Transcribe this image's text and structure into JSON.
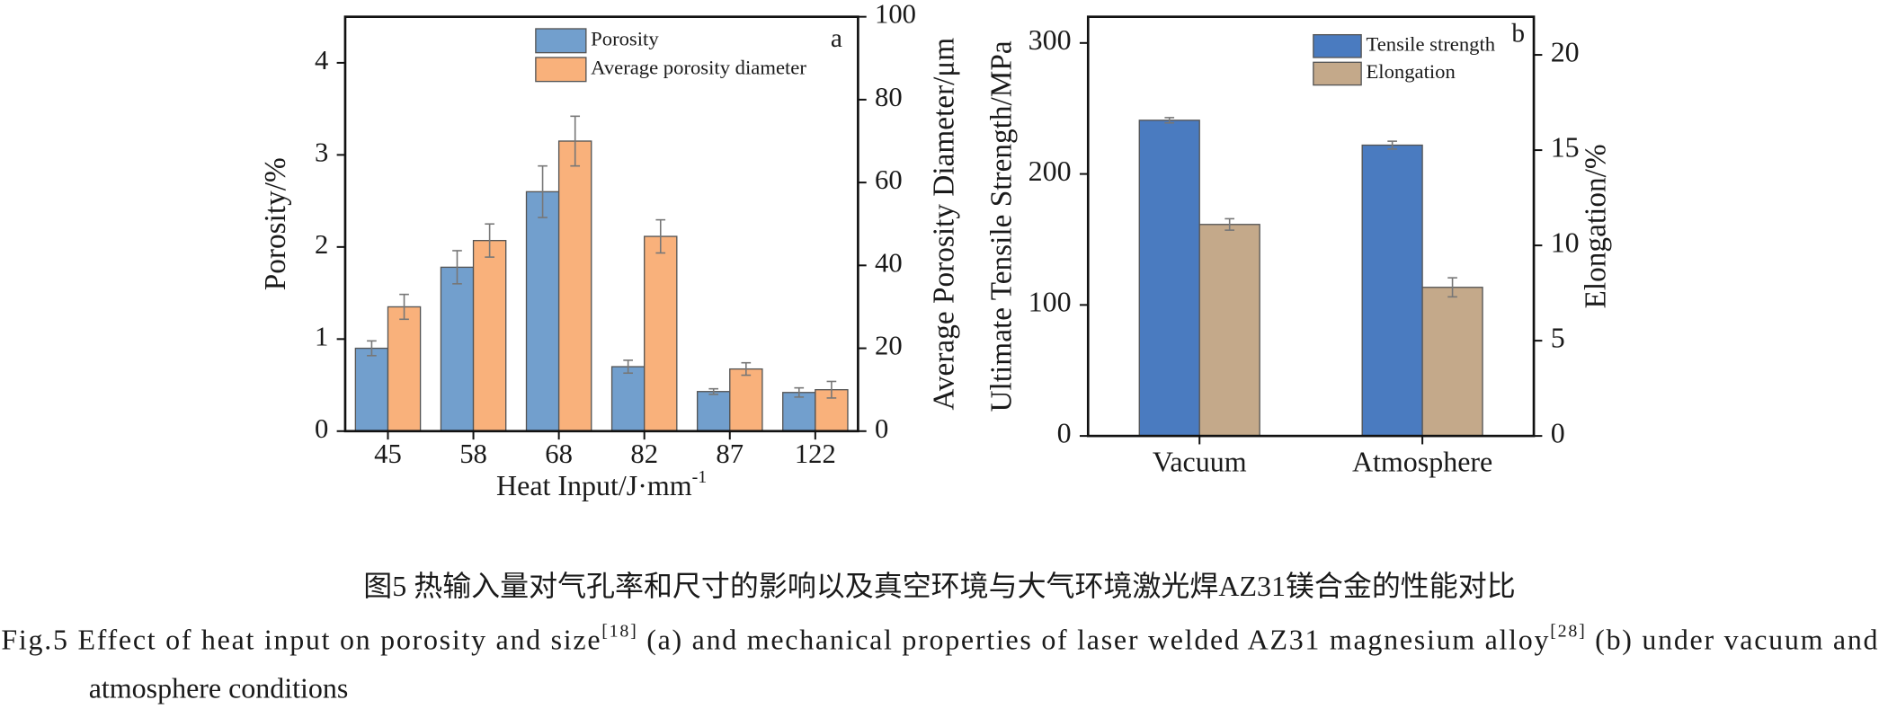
{
  "chart_data": [
    {
      "type": "bar",
      "panel_label": "a",
      "categories": [
        "45",
        "58",
        "68",
        "82",
        "87",
        "122"
      ],
      "x_label": {
        "text": "Heat Input/J·mm",
        "superscript": "-1"
      },
      "y_label": "Porosity/%",
      "y2_label": "Average Porosity Diameter/μm",
      "ylim": [
        0,
        4.5
      ],
      "yticks": [
        0,
        1,
        2,
        3,
        4
      ],
      "y2lim": [
        0,
        100
      ],
      "y2ticks": [
        0,
        20,
        40,
        60,
        80,
        100
      ],
      "series": [
        {
          "name": "Porosity",
          "color": "#729fcd",
          "values": [
            0.9,
            1.78,
            2.6,
            0.7,
            0.43,
            0.42
          ],
          "errors": [
            0.08,
            0.18,
            0.28,
            0.07,
            0.03,
            0.05
          ]
        },
        {
          "name": "Average porosity diameter",
          "color": "#f9b17b",
          "axis": "y2",
          "values": [
            30,
            46,
            70,
            47,
            15,
            10
          ],
          "errors": [
            3,
            4,
            6,
            4,
            1.5,
            2
          ]
        }
      ]
    },
    {
      "type": "bar",
      "panel_label": "b",
      "categories": [
        "Vacuum",
        "Atmosphere"
      ],
      "y_label": "Ultimate Tensile Strength/MPa",
      "y2_label": "Elongation/%",
      "ylim": [
        0,
        320
      ],
      "yticks": [
        0,
        100,
        200,
        300
      ],
      "y2lim": [
        0,
        22
      ],
      "y2ticks": [
        0,
        5,
        10,
        15,
        20
      ],
      "series": [
        {
          "name": "Tensile strength",
          "color": "#4a7bc0",
          "values": [
            241,
            222
          ],
          "errors": [
            2,
            3
          ]
        },
        {
          "name": "Elongation",
          "color": "#c4a98a",
          "axis": "y2",
          "values": [
            11.1,
            7.8
          ],
          "errors": [
            0.3,
            0.5
          ]
        }
      ]
    }
  ],
  "caption": {
    "zh": "图5  热输入量对气孔率和尺寸的影响以及真空环境与大气环境激光焊AZ31镁合金的性能对比",
    "en": [
      "Fig.5  Effect of heat input on porosity and size",
      "[18]",
      " (a) and mechanical properties of laser welded AZ31 magnesium alloy",
      "[28]",
      " (b) under vacuum and",
      "atmosphere conditions"
    ]
  }
}
